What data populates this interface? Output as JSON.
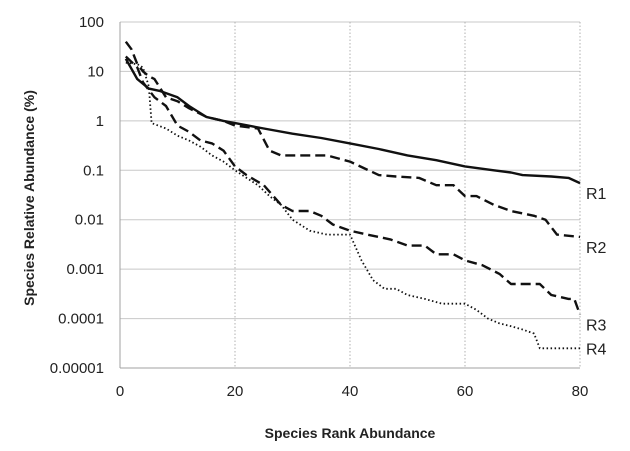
{
  "chart_data": {
    "type": "line",
    "title": "",
    "xlabel": "Species Rank Abundance",
    "ylabel": "Species Relative Abundance (%)",
    "xlim": [
      0,
      80
    ],
    "ylim": [
      1e-05,
      100
    ],
    "yscale": "log",
    "grid": true,
    "legend": "end-of-line labels",
    "x_ticks": [
      "0",
      "20",
      "40",
      "60",
      "80"
    ],
    "y_ticks": [
      "100",
      "10",
      "1",
      "0.1",
      "0.01",
      "0.001",
      "0.0001",
      "0.00001"
    ],
    "series": [
      {
        "name": "R1",
        "style": "solid",
        "points": [
          [
            1,
            18
          ],
          [
            3,
            7
          ],
          [
            5,
            4.5
          ],
          [
            7,
            4
          ],
          [
            10,
            3
          ],
          [
            12,
            2
          ],
          [
            15,
            1.2
          ],
          [
            18,
            1
          ],
          [
            20,
            0.9
          ],
          [
            25,
            0.7
          ],
          [
            30,
            0.55
          ],
          [
            35,
            0.45
          ],
          [
            40,
            0.35
          ],
          [
            45,
            0.27
          ],
          [
            50,
            0.2
          ],
          [
            55,
            0.16
          ],
          [
            60,
            0.12
          ],
          [
            65,
            0.1
          ],
          [
            68,
            0.09
          ],
          [
            70,
            0.08
          ],
          [
            75,
            0.075
          ],
          [
            78,
            0.07
          ],
          [
            80,
            0.055
          ]
        ]
      },
      {
        "name": "R2",
        "style": "dashed",
        "points": [
          [
            1,
            40
          ],
          [
            2,
            28
          ],
          [
            3,
            14
          ],
          [
            4,
            10
          ],
          [
            5,
            8
          ],
          [
            6,
            7
          ],
          [
            8,
            3
          ],
          [
            10,
            2.5
          ],
          [
            12,
            1.8
          ],
          [
            15,
            1.2
          ],
          [
            18,
            1
          ],
          [
            20,
            0.8
          ],
          [
            24,
            0.7
          ],
          [
            26,
            0.25
          ],
          [
            28,
            0.2
          ],
          [
            32,
            0.2
          ],
          [
            36,
            0.2
          ],
          [
            40,
            0.15
          ],
          [
            45,
            0.08
          ],
          [
            48,
            0.075
          ],
          [
            52,
            0.07
          ],
          [
            55,
            0.05
          ],
          [
            58,
            0.05
          ],
          [
            60,
            0.03
          ],
          [
            62,
            0.03
          ],
          [
            65,
            0.02
          ],
          [
            68,
            0.015
          ],
          [
            72,
            0.012
          ],
          [
            74,
            0.01
          ],
          [
            76,
            0.005
          ],
          [
            80,
            0.0045
          ]
        ]
      },
      {
        "name": "R3",
        "style": "dashed",
        "points": [
          [
            1,
            20
          ],
          [
            3,
            12
          ],
          [
            4,
            6
          ],
          [
            6,
            3
          ],
          [
            8,
            2
          ],
          [
            10,
            0.8
          ],
          [
            12,
            0.6
          ],
          [
            14,
            0.4
          ],
          [
            16,
            0.35
          ],
          [
            18,
            0.25
          ],
          [
            20,
            0.12
          ],
          [
            22,
            0.08
          ],
          [
            25,
            0.05
          ],
          [
            28,
            0.02
          ],
          [
            30,
            0.015
          ],
          [
            33,
            0.015
          ],
          [
            35,
            0.012
          ],
          [
            37,
            0.008
          ],
          [
            40,
            0.006
          ],
          [
            43,
            0.005
          ],
          [
            47,
            0.004
          ],
          [
            50,
            0.003
          ],
          [
            53,
            0.003
          ],
          [
            55,
            0.002
          ],
          [
            58,
            0.002
          ],
          [
            60,
            0.0015
          ],
          [
            63,
            0.0012
          ],
          [
            66,
            0.0008
          ],
          [
            68,
            0.0005
          ],
          [
            70,
            0.0005
          ],
          [
            73,
            0.0005
          ],
          [
            75,
            0.0003
          ],
          [
            78,
            0.00025
          ],
          [
            79,
            0.00025
          ],
          [
            80,
            0.00012
          ]
        ]
      },
      {
        "name": "R4",
        "style": "dotted",
        "points": [
          [
            1,
            15
          ],
          [
            3,
            14
          ],
          [
            4,
            12
          ],
          [
            5,
            5
          ],
          [
            5.5,
            0.9
          ],
          [
            8,
            0.7
          ],
          [
            10,
            0.5
          ],
          [
            12,
            0.4
          ],
          [
            14,
            0.3
          ],
          [
            16,
            0.2
          ],
          [
            18,
            0.15
          ],
          [
            20,
            0.1
          ],
          [
            22,
            0.07
          ],
          [
            24,
            0.05
          ],
          [
            26,
            0.03
          ],
          [
            28,
            0.02
          ],
          [
            30,
            0.01
          ],
          [
            33,
            0.006
          ],
          [
            36,
            0.005
          ],
          [
            40,
            0.005
          ],
          [
            42,
            0.0015
          ],
          [
            44,
            0.0006
          ],
          [
            46,
            0.0004
          ],
          [
            48,
            0.0004
          ],
          [
            50,
            0.0003
          ],
          [
            53,
            0.00025
          ],
          [
            56,
            0.0002
          ],
          [
            60,
            0.0002
          ],
          [
            62,
            0.00015
          ],
          [
            64,
            0.0001
          ],
          [
            66,
            8e-05
          ],
          [
            68,
            7e-05
          ],
          [
            70,
            6e-05
          ],
          [
            72,
            5e-05
          ],
          [
            73,
            2.5e-05
          ],
          [
            80,
            2.5e-05
          ]
        ]
      }
    ]
  }
}
